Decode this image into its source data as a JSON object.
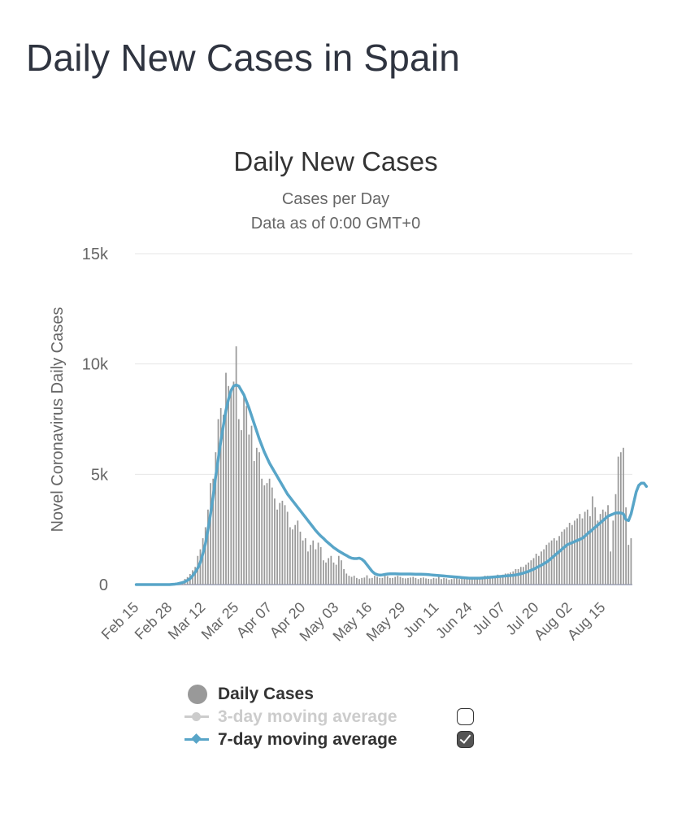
{
  "page": {
    "title": "Daily New Cases in Spain"
  },
  "chart_data": {
    "type": "bar",
    "title": "Daily New Cases",
    "subtitle_line1": "Cases per Day",
    "subtitle_line2": "Data as of 0:00 GMT+0",
    "ylabel": "Novel Coronavirus Daily Cases",
    "xlabel": "",
    "ylim": [
      0,
      15000
    ],
    "yticks": [
      0,
      5000,
      10000,
      15000
    ],
    "ytick_labels": [
      "0",
      "5k",
      "10k",
      "15k"
    ],
    "x_tick_labels": [
      "Feb 15",
      "Feb 28",
      "Mar 12",
      "Mar 25",
      "Apr 07",
      "Apr 20",
      "May 03",
      "May 16",
      "May 29",
      "Jun 11",
      "Jun 24",
      "Jul 07",
      "Jul 20",
      "Aug 02",
      "Aug 15"
    ],
    "x_tick_interval_days": 13,
    "start_day_label": "Feb 15",
    "series": [
      {
        "name": "Daily Cases",
        "type": "bar",
        "color": "#999999",
        "values": [
          0,
          0,
          0,
          0,
          0,
          0,
          0,
          0,
          0,
          0,
          2,
          4,
          6,
          20,
          45,
          40,
          55,
          120,
          150,
          260,
          340,
          480,
          650,
          800,
          1300,
          1600,
          2100,
          2600,
          3400,
          4600,
          4800,
          6000,
          7500,
          8000,
          7700,
          9600,
          9000,
          8800,
          9200,
          10800,
          7500,
          7000,
          8500,
          8100,
          6800,
          7200,
          5600,
          6200,
          6000,
          4800,
          4500,
          4600,
          4800,
          4400,
          3900,
          3400,
          3700,
          3800,
          3600,
          3300,
          2600,
          2500,
          2700,
          2900,
          2400,
          2000,
          2100,
          1500,
          1800,
          2000,
          1600,
          1900,
          1700,
          1100,
          1000,
          1200,
          1300,
          1000,
          900,
          1300,
          1100,
          700,
          500,
          400,
          350,
          400,
          300,
          250,
          300,
          320,
          420,
          280,
          300,
          400,
          350,
          300,
          300,
          400,
          380,
          300,
          300,
          350,
          400,
          350,
          300,
          280,
          300,
          320,
          350,
          300,
          250,
          300,
          320,
          280,
          260,
          250,
          300,
          280,
          350,
          250,
          300,
          280,
          220,
          250,
          280,
          300,
          250,
          260,
          280,
          300,
          320,
          300,
          350,
          330,
          330,
          350,
          400,
          400,
          350,
          350,
          400,
          450,
          400,
          450,
          500,
          500,
          550,
          600,
          700,
          700,
          800,
          800,
          900,
          1000,
          1100,
          1200,
          1400,
          1300,
          1500,
          1600,
          1800,
          1900,
          2000,
          2100,
          2000,
          2200,
          2400,
          2500,
          2600,
          2800,
          2700,
          2900,
          3000,
          3200,
          3000,
          3300,
          3400,
          3100,
          4000,
          3500,
          2900,
          3200,
          3400,
          3300,
          3600,
          1500,
          2900,
          4100,
          5800,
          6000,
          6200,
          3500,
          1800,
          2100
        ]
      },
      {
        "name": "3-day moving average",
        "type": "line",
        "color": "#cccccc",
        "visible": false
      },
      {
        "name": "7-day moving average",
        "type": "line",
        "color": "#58a5c8",
        "visible": true,
        "values": [
          0,
          0,
          0,
          0,
          0,
          0,
          0,
          0,
          0,
          0,
          0,
          0,
          0,
          0,
          10,
          20,
          35,
          60,
          90,
          130,
          190,
          270,
          400,
          560,
          750,
          1000,
          1400,
          1850,
          2500,
          3200,
          4000,
          4900,
          5700,
          6500,
          7200,
          7900,
          8400,
          8800,
          9000,
          9050,
          9000,
          8800,
          8600,
          8300,
          8000,
          7650,
          7300,
          6950,
          6600,
          6300,
          6000,
          5750,
          5500,
          5300,
          5100,
          4900,
          4700,
          4500,
          4300,
          4100,
          3950,
          3800,
          3650,
          3500,
          3350,
          3200,
          3050,
          2900,
          2750,
          2600,
          2450,
          2320,
          2200,
          2100,
          1980,
          1880,
          1780,
          1680,
          1600,
          1520,
          1450,
          1380,
          1320,
          1250,
          1200,
          1180,
          1180,
          1200,
          1150,
          1050,
          900,
          750,
          600,
          500,
          450,
          430,
          440,
          460,
          480,
          490,
          490,
          490,
          485,
          480,
          480,
          480,
          480,
          480,
          475,
          470,
          470,
          470,
          465,
          460,
          450,
          440,
          430,
          420,
          410,
          400,
          390,
          380,
          370,
          360,
          350,
          340,
          330,
          320,
          310,
          300,
          290,
          290,
          290,
          290,
          290,
          300,
          310,
          320,
          330,
          340,
          350,
          360,
          370,
          380,
          390,
          400,
          410,
          420,
          440,
          460,
          490,
          520,
          560,
          600,
          650,
          700,
          760,
          820,
          880,
          950,
          1020,
          1100,
          1200,
          1300,
          1400,
          1500,
          1600,
          1700,
          1800,
          1850,
          1900,
          1950,
          2000,
          2050,
          2100,
          2200,
          2300,
          2400,
          2500,
          2600,
          2700,
          2800,
          2900,
          3000,
          3100,
          3150,
          3200,
          3250,
          3250,
          3250,
          3200,
          2950,
          2900,
          3200,
          3700,
          4200,
          4500,
          4600,
          4600,
          4450
        ]
      }
    ]
  },
  "legend": {
    "items": [
      {
        "label": "Daily Cases",
        "checkbox": false
      },
      {
        "label": "3-day moving average",
        "checkbox": true,
        "checked": false,
        "color": "#cccccc"
      },
      {
        "label": "7-day moving average",
        "checkbox": true,
        "checked": true,
        "color": "#58a5c8"
      }
    ]
  }
}
